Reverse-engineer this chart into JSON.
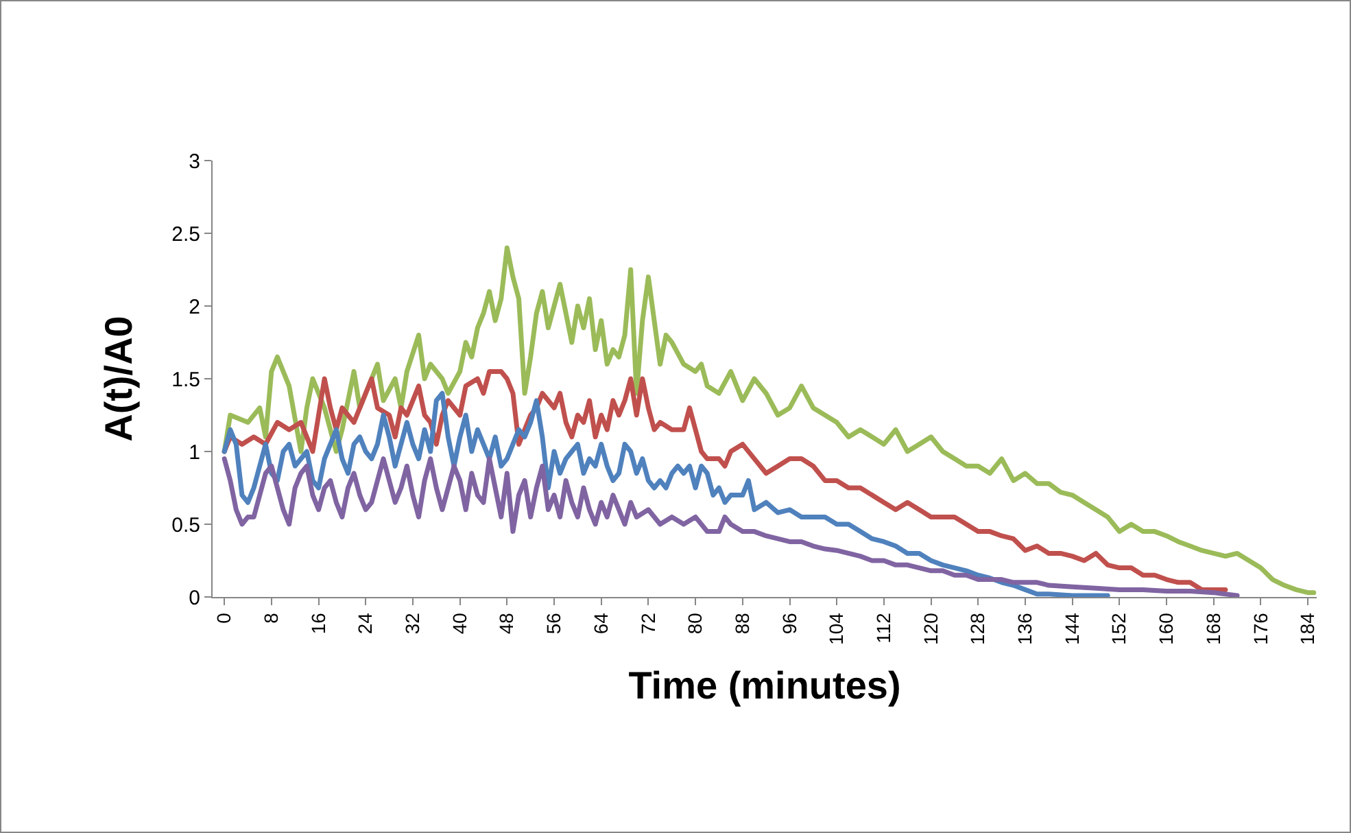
{
  "chart_data": {
    "type": "line",
    "xlabel": "Time (minutes)",
    "ylabel": "A(t)/A0",
    "xlim": [
      -2,
      185.5
    ],
    "xticks": [
      0,
      8,
      16,
      24,
      32,
      40,
      48,
      56,
      64,
      72,
      80,
      88,
      96,
      104,
      112,
      120,
      128,
      136,
      144,
      152,
      160,
      168,
      176,
      184
    ],
    "ylim": [
      0,
      3
    ],
    "yticks": [
      0,
      0.5,
      1,
      1.5,
      2,
      2.5,
      3
    ],
    "marker": "none",
    "line_style": "solid",
    "series": [
      {
        "color": "#9bbb59",
        "x": [
          0,
          1,
          4,
          6,
          7,
          8,
          9,
          11,
          13,
          14,
          15,
          17,
          19,
          20,
          22,
          23,
          25,
          26,
          27,
          29,
          30,
          31,
          33,
          34,
          35,
          37,
          38,
          40,
          41,
          42,
          43,
          44,
          45,
          46,
          47,
          48,
          49,
          50,
          51,
          52,
          53,
          54,
          55,
          56,
          57,
          59,
          60,
          61,
          62,
          63,
          64,
          65,
          66,
          67,
          68,
          69,
          70,
          71,
          72,
          73,
          74,
          75,
          76,
          78,
          80,
          81,
          82,
          84,
          86,
          88,
          90,
          92,
          94,
          96,
          98,
          100,
          102,
          104,
          106,
          108,
          110,
          112,
          114,
          116,
          118,
          120,
          122,
          124,
          126,
          128,
          130,
          132,
          134,
          136,
          138,
          140,
          142,
          144,
          146,
          148,
          150,
          152,
          154,
          156,
          158,
          160,
          162,
          164,
          166,
          168,
          170,
          172,
          174,
          176,
          178,
          180,
          182,
          184,
          185
        ],
        "values": [
          1.0,
          1.25,
          1.2,
          1.3,
          1.1,
          1.55,
          1.65,
          1.45,
          1.0,
          1.3,
          1.5,
          1.3,
          1.0,
          1.15,
          1.55,
          1.3,
          1.5,
          1.6,
          1.35,
          1.5,
          1.3,
          1.55,
          1.8,
          1.5,
          1.6,
          1.5,
          1.4,
          1.55,
          1.75,
          1.65,
          1.85,
          1.95,
          2.1,
          1.9,
          2.05,
          2.4,
          2.2,
          2.05,
          1.4,
          1.65,
          1.95,
          2.1,
          1.85,
          2.0,
          2.15,
          1.75,
          2.0,
          1.85,
          2.05,
          1.7,
          1.9,
          1.6,
          1.7,
          1.65,
          1.8,
          2.25,
          1.4,
          1.9,
          2.2,
          1.9,
          1.6,
          1.8,
          1.75,
          1.6,
          1.55,
          1.6,
          1.45,
          1.4,
          1.55,
          1.35,
          1.5,
          1.4,
          1.25,
          1.3,
          1.45,
          1.3,
          1.25,
          1.2,
          1.1,
          1.15,
          1.1,
          1.05,
          1.15,
          1.0,
          1.05,
          1.1,
          1.0,
          0.95,
          0.9,
          0.9,
          0.85,
          0.95,
          0.8,
          0.85,
          0.78,
          0.78,
          0.72,
          0.7,
          0.65,
          0.6,
          0.55,
          0.45,
          0.5,
          0.45,
          0.45,
          0.42,
          0.38,
          0.35,
          0.32,
          0.3,
          0.28,
          0.3,
          0.25,
          0.2,
          0.12,
          0.08,
          0.05,
          0.03,
          0.03
        ]
      },
      {
        "color": "#c0504d",
        "x": [
          0,
          1,
          3,
          5,
          7,
          9,
          11,
          13,
          15,
          16,
          17,
          18,
          19,
          20,
          22,
          24,
          25,
          26,
          28,
          29,
          30,
          31,
          33,
          34,
          35,
          36,
          37,
          38,
          40,
          41,
          43,
          44,
          45,
          47,
          48,
          49,
          50,
          51,
          52,
          53,
          54,
          55,
          56,
          57,
          58,
          59,
          60,
          61,
          62,
          63,
          64,
          65,
          66,
          67,
          68,
          69,
          70,
          71,
          72,
          73,
          74,
          76,
          78,
          79,
          80,
          81,
          82,
          84,
          85,
          86,
          88,
          90,
          92,
          94,
          96,
          98,
          100,
          102,
          104,
          106,
          108,
          110,
          112,
          114,
          116,
          118,
          120,
          122,
          124,
          126,
          128,
          130,
          132,
          134,
          136,
          138,
          140,
          142,
          144,
          146,
          148,
          150,
          152,
          154,
          156,
          158,
          160,
          162,
          164,
          166,
          168,
          170
        ],
        "values": [
          1.0,
          1.1,
          1.05,
          1.1,
          1.05,
          1.2,
          1.15,
          1.2,
          1.0,
          1.25,
          1.5,
          1.3,
          1.15,
          1.3,
          1.2,
          1.4,
          1.5,
          1.3,
          1.25,
          1.1,
          1.3,
          1.25,
          1.45,
          1.25,
          1.2,
          1.05,
          1.25,
          1.35,
          1.25,
          1.45,
          1.5,
          1.4,
          1.55,
          1.55,
          1.5,
          1.4,
          1.05,
          1.15,
          1.25,
          1.3,
          1.4,
          1.35,
          1.3,
          1.4,
          1.2,
          1.1,
          1.25,
          1.2,
          1.35,
          1.1,
          1.25,
          1.15,
          1.35,
          1.25,
          1.35,
          1.5,
          1.25,
          1.5,
          1.3,
          1.15,
          1.2,
          1.15,
          1.15,
          1.3,
          1.15,
          1.0,
          0.95,
          0.95,
          0.9,
          1.0,
          1.05,
          0.95,
          0.85,
          0.9,
          0.95,
          0.95,
          0.9,
          0.8,
          0.8,
          0.75,
          0.75,
          0.7,
          0.65,
          0.6,
          0.65,
          0.6,
          0.55,
          0.55,
          0.55,
          0.5,
          0.45,
          0.45,
          0.42,
          0.4,
          0.32,
          0.35,
          0.3,
          0.3,
          0.28,
          0.25,
          0.3,
          0.22,
          0.2,
          0.2,
          0.15,
          0.15,
          0.12,
          0.1,
          0.1,
          0.05,
          0.05,
          0.05
        ]
      },
      {
        "color": "#4f81bd",
        "x": [
          0,
          1,
          2,
          3,
          4,
          5,
          6,
          7,
          8,
          9,
          10,
          11,
          12,
          14,
          15,
          16,
          17,
          18,
          19,
          20,
          21,
          22,
          23,
          24,
          25,
          26,
          27,
          28,
          29,
          30,
          31,
          32,
          33,
          34,
          35,
          36,
          37,
          38,
          39,
          40,
          41,
          42,
          43,
          44,
          45,
          46,
          47,
          48,
          49,
          50,
          51,
          52,
          53,
          54,
          55,
          56,
          57,
          58,
          59,
          60,
          61,
          62,
          63,
          64,
          65,
          66,
          67,
          68,
          69,
          70,
          71,
          72,
          73,
          74,
          75,
          76,
          77,
          78,
          79,
          80,
          81,
          82,
          83,
          84,
          85,
          86,
          88,
          89,
          90,
          92,
          94,
          96,
          98,
          100,
          102,
          104,
          106,
          108,
          110,
          112,
          114,
          116,
          118,
          120,
          122,
          124,
          126,
          128,
          130,
          132,
          134,
          136,
          138,
          140,
          144,
          148,
          150
        ],
        "values": [
          1.0,
          1.15,
          1.05,
          0.7,
          0.65,
          0.75,
          0.9,
          1.05,
          0.85,
          0.8,
          1.0,
          1.05,
          0.9,
          1.0,
          0.8,
          0.75,
          0.95,
          1.05,
          1.15,
          0.95,
          0.85,
          1.05,
          1.1,
          1.0,
          0.95,
          1.05,
          1.25,
          1.1,
          0.9,
          1.05,
          1.2,
          1.05,
          0.95,
          1.15,
          1.0,
          1.35,
          1.4,
          1.1,
          0.9,
          1.1,
          1.25,
          1.0,
          1.15,
          1.05,
          0.95,
          1.1,
          0.9,
          0.95,
          1.05,
          1.15,
          1.1,
          1.2,
          1.35,
          1.1,
          0.75,
          1.0,
          0.85,
          0.95,
          1.0,
          1.05,
          0.85,
          0.95,
          0.9,
          1.05,
          0.9,
          0.8,
          0.85,
          1.05,
          1.0,
          0.85,
          0.95,
          0.8,
          0.75,
          0.8,
          0.75,
          0.85,
          0.9,
          0.85,
          0.9,
          0.75,
          0.9,
          0.85,
          0.7,
          0.75,
          0.65,
          0.7,
          0.7,
          0.8,
          0.6,
          0.65,
          0.58,
          0.6,
          0.55,
          0.55,
          0.55,
          0.5,
          0.5,
          0.45,
          0.4,
          0.38,
          0.35,
          0.3,
          0.3,
          0.25,
          0.22,
          0.2,
          0.18,
          0.15,
          0.13,
          0.1,
          0.08,
          0.05,
          0.02,
          0.02,
          0.01,
          0.01,
          0.01
        ]
      },
      {
        "color": "#8064a2",
        "x": [
          0,
          1,
          2,
          3,
          4,
          5,
          6,
          7,
          8,
          9,
          10,
          11,
          12,
          13,
          14,
          15,
          16,
          17,
          18,
          19,
          20,
          21,
          22,
          23,
          24,
          25,
          26,
          27,
          28,
          29,
          30,
          31,
          32,
          33,
          34,
          35,
          36,
          37,
          38,
          39,
          40,
          41,
          42,
          43,
          44,
          45,
          46,
          47,
          48,
          49,
          50,
          51,
          52,
          53,
          54,
          55,
          56,
          57,
          58,
          59,
          60,
          61,
          62,
          63,
          64,
          65,
          66,
          67,
          68,
          69,
          70,
          72,
          74,
          76,
          78,
          80,
          82,
          84,
          85,
          86,
          88,
          90,
          92,
          94,
          96,
          98,
          100,
          102,
          104,
          106,
          108,
          110,
          112,
          114,
          116,
          118,
          120,
          122,
          124,
          126,
          128,
          130,
          132,
          134,
          136,
          138,
          140,
          144,
          148,
          152,
          156,
          160,
          164,
          168,
          172
        ],
        "values": [
          0.95,
          0.8,
          0.6,
          0.5,
          0.55,
          0.55,
          0.7,
          0.85,
          0.9,
          0.75,
          0.6,
          0.5,
          0.75,
          0.85,
          0.9,
          0.7,
          0.6,
          0.75,
          0.8,
          0.65,
          0.55,
          0.75,
          0.85,
          0.7,
          0.6,
          0.65,
          0.8,
          0.95,
          0.8,
          0.65,
          0.75,
          0.9,
          0.7,
          0.55,
          0.8,
          0.95,
          0.75,
          0.6,
          0.75,
          0.9,
          0.8,
          0.6,
          0.85,
          0.7,
          0.65,
          0.95,
          0.75,
          0.55,
          0.85,
          0.45,
          0.7,
          0.8,
          0.55,
          0.75,
          0.9,
          0.6,
          0.7,
          0.55,
          0.8,
          0.65,
          0.55,
          0.75,
          0.6,
          0.5,
          0.65,
          0.55,
          0.7,
          0.6,
          0.5,
          0.65,
          0.55,
          0.6,
          0.5,
          0.55,
          0.5,
          0.55,
          0.45,
          0.45,
          0.55,
          0.5,
          0.45,
          0.45,
          0.42,
          0.4,
          0.38,
          0.38,
          0.35,
          0.33,
          0.32,
          0.3,
          0.28,
          0.25,
          0.25,
          0.22,
          0.22,
          0.2,
          0.18,
          0.18,
          0.15,
          0.15,
          0.12,
          0.12,
          0.12,
          0.1,
          0.1,
          0.1,
          0.08,
          0.07,
          0.06,
          0.05,
          0.05,
          0.04,
          0.04,
          0.03,
          0.01
        ]
      }
    ]
  }
}
